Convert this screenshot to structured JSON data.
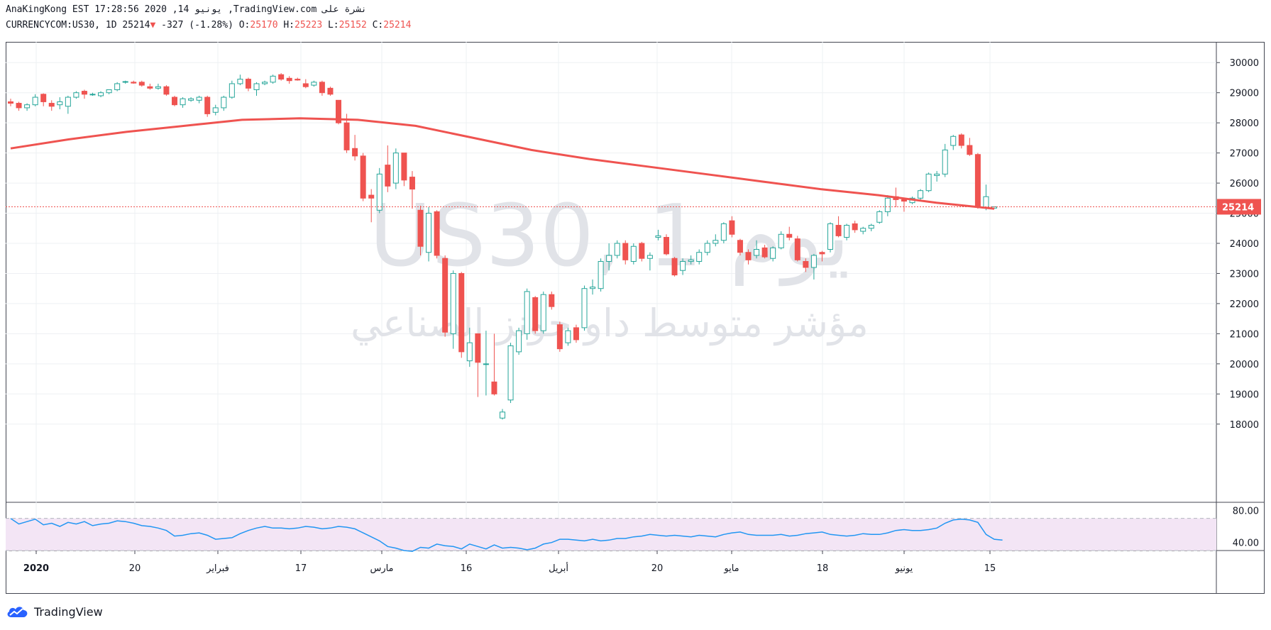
{
  "header": {
    "line1": "AnaKingKong EST 17:28:56 2020 ,14 يونيو ,TradingView.com نشرة على",
    "symbol": "CURRENCYCOM:US30, 1D 25214",
    "change": "-327 (-1.28%)",
    "o_label": "O:",
    "o_value": "25170",
    "h_label": "H:",
    "h_value": "25223",
    "l_label": "L:",
    "l_value": "25152",
    "c_label": "C:",
    "c_value": "25214"
  },
  "watermark": {
    "line1": "US30, 1 يوم",
    "line2": "مؤشر متوسط داو جونز الصناعي"
  },
  "logo": {
    "text": "TradingView"
  },
  "colors": {
    "up": "#26a69a",
    "down": "#ef5350",
    "ma": "#ef5350",
    "rsi": "#2196f3",
    "rsi_band": "#f3e5f5"
  },
  "chart_data": [
    {
      "type": "candlestick",
      "ylim": [
        17500,
        30500
      ],
      "yticks": [
        "18000",
        "19000",
        "20000",
        "21000",
        "22000",
        "23000",
        "24000",
        "25000",
        "26000",
        "27000",
        "28000",
        "29000",
        "30000"
      ],
      "last_price_label": "25214",
      "xticks": [
        "2020",
        "20",
        "فبراير",
        "17",
        "مارس",
        "16",
        "أبريل",
        "20",
        "مايو",
        "18",
        "يونيو",
        "15"
      ],
      "candles": [
        {
          "o": 28700,
          "h": 28800,
          "l": 28550,
          "c": 28650
        },
        {
          "o": 28650,
          "h": 28700,
          "l": 28400,
          "c": 28500
        },
        {
          "o": 28500,
          "h": 28650,
          "l": 28400,
          "c": 28600
        },
        {
          "o": 28600,
          "h": 28950,
          "l": 28550,
          "c": 28850
        },
        {
          "o": 28950,
          "h": 28980,
          "l": 28550,
          "c": 28700
        },
        {
          "o": 28650,
          "h": 28750,
          "l": 28400,
          "c": 28550
        },
        {
          "o": 28600,
          "h": 28850,
          "l": 28450,
          "c": 28700
        },
        {
          "o": 28550,
          "h": 28900,
          "l": 28300,
          "c": 28850
        },
        {
          "o": 28850,
          "h": 29050,
          "l": 28800,
          "c": 29000
        },
        {
          "o": 29050,
          "h": 29100,
          "l": 28800,
          "c": 28950
        },
        {
          "o": 28950,
          "h": 29000,
          "l": 28900,
          "c": 28950
        },
        {
          "o": 28900,
          "h": 29050,
          "l": 28850,
          "c": 29000
        },
        {
          "o": 29000,
          "h": 29100,
          "l": 28950,
          "c": 29100
        },
        {
          "o": 29100,
          "h": 29350,
          "l": 29050,
          "c": 29300
        },
        {
          "o": 29350,
          "h": 29400,
          "l": 29300,
          "c": 29370
        },
        {
          "o": 29350,
          "h": 29400,
          "l": 29300,
          "c": 29320
        },
        {
          "o": 29350,
          "h": 29400,
          "l": 29200,
          "c": 29250
        },
        {
          "o": 29200,
          "h": 29300,
          "l": 29100,
          "c": 29150
        },
        {
          "o": 29150,
          "h": 29300,
          "l": 29100,
          "c": 29200
        },
        {
          "o": 29200,
          "h": 29250,
          "l": 28900,
          "c": 28950
        },
        {
          "o": 28850,
          "h": 28900,
          "l": 28550,
          "c": 28600
        },
        {
          "o": 28600,
          "h": 28850,
          "l": 28500,
          "c": 28800
        },
        {
          "o": 28750,
          "h": 28850,
          "l": 28700,
          "c": 28800
        },
        {
          "o": 28750,
          "h": 28900,
          "l": 28650,
          "c": 28850
        },
        {
          "o": 28850,
          "h": 28900,
          "l": 28200,
          "c": 28300
        },
        {
          "o": 28350,
          "h": 28600,
          "l": 28250,
          "c": 28500
        },
        {
          "o": 28500,
          "h": 28900,
          "l": 28400,
          "c": 28850
        },
        {
          "o": 28850,
          "h": 29400,
          "l": 28800,
          "c": 29300
        },
        {
          "o": 29300,
          "h": 29600,
          "l": 29250,
          "c": 29450
        },
        {
          "o": 29450,
          "h": 29500,
          "l": 29050,
          "c": 29150
        },
        {
          "o": 29100,
          "h": 29350,
          "l": 28900,
          "c": 29300
        },
        {
          "o": 29300,
          "h": 29400,
          "l": 29250,
          "c": 29350
        },
        {
          "o": 29350,
          "h": 29600,
          "l": 29300,
          "c": 29550
        },
        {
          "o": 29600,
          "h": 29650,
          "l": 29400,
          "c": 29450
        },
        {
          "o": 29480,
          "h": 29550,
          "l": 29300,
          "c": 29400
        },
        {
          "o": 29450,
          "h": 29500,
          "l": 29400,
          "c": 29420
        },
        {
          "o": 29300,
          "h": 29450,
          "l": 29150,
          "c": 29200
        },
        {
          "o": 29250,
          "h": 29400,
          "l": 29200,
          "c": 29350
        },
        {
          "o": 29350,
          "h": 29400,
          "l": 28900,
          "c": 29000
        },
        {
          "o": 29150,
          "h": 29200,
          "l": 28900,
          "c": 28950
        },
        {
          "o": 28750,
          "h": 28750,
          "l": 27950,
          "c": 28000
        },
        {
          "o": 28000,
          "h": 28300,
          "l": 27000,
          "c": 27100
        },
        {
          "o": 27150,
          "h": 27600,
          "l": 26750,
          "c": 26900
        },
        {
          "o": 26900,
          "h": 27000,
          "l": 25400,
          "c": 25500
        },
        {
          "o": 25600,
          "h": 25800,
          "l": 24700,
          "c": 25500
        },
        {
          "o": 25100,
          "h": 26500,
          "l": 25000,
          "c": 26300
        },
        {
          "o": 26600,
          "h": 27250,
          "l": 25700,
          "c": 25900
        },
        {
          "o": 26000,
          "h": 27150,
          "l": 25800,
          "c": 27000
        },
        {
          "o": 27000,
          "h": 27000,
          "l": 25900,
          "c": 26100
        },
        {
          "o": 26200,
          "h": 26400,
          "l": 25150,
          "c": 25800
        },
        {
          "o": 25100,
          "h": 25250,
          "l": 23600,
          "c": 23900
        },
        {
          "o": 23700,
          "h": 25200,
          "l": 23400,
          "c": 25000
        },
        {
          "o": 25050,
          "h": 25100,
          "l": 23500,
          "c": 23600
        },
        {
          "o": 23500,
          "h": 23600,
          "l": 20900,
          "c": 21050
        },
        {
          "o": 21000,
          "h": 23100,
          "l": 20500,
          "c": 23000
        },
        {
          "o": 23000,
          "h": 23050,
          "l": 20200,
          "c": 20400
        },
        {
          "o": 20100,
          "h": 21200,
          "l": 19900,
          "c": 20700
        },
        {
          "o": 21000,
          "h": 21000,
          "l": 18900,
          "c": 20050
        },
        {
          "o": 20000,
          "h": 21100,
          "l": 18950,
          "c": 20000
        },
        {
          "o": 19400,
          "h": 21000,
          "l": 18950,
          "c": 19000
        },
        {
          "o": 18200,
          "h": 18500,
          "l": 18150,
          "c": 18400
        },
        {
          "o": 18800,
          "h": 20700,
          "l": 18700,
          "c": 20600
        },
        {
          "o": 20400,
          "h": 21200,
          "l": 20300,
          "c": 21100
        },
        {
          "o": 21000,
          "h": 22500,
          "l": 20800,
          "c": 22400
        },
        {
          "o": 22200,
          "h": 22250,
          "l": 21000,
          "c": 21100
        },
        {
          "o": 21100,
          "h": 22400,
          "l": 21000,
          "c": 22300
        },
        {
          "o": 22300,
          "h": 22400,
          "l": 21800,
          "c": 21900
        },
        {
          "o": 21300,
          "h": 21400,
          "l": 20400,
          "c": 20500
        },
        {
          "o": 20700,
          "h": 21200,
          "l": 20600,
          "c": 21100
        },
        {
          "o": 21200,
          "h": 21300,
          "l": 20700,
          "c": 20800
        },
        {
          "o": 21200,
          "h": 22600,
          "l": 21100,
          "c": 22500
        },
        {
          "o": 22500,
          "h": 22800,
          "l": 22300,
          "c": 22550
        },
        {
          "o": 22500,
          "h": 23500,
          "l": 22400,
          "c": 23400
        },
        {
          "o": 23400,
          "h": 24000,
          "l": 23100,
          "c": 23600
        },
        {
          "o": 23600,
          "h": 24100,
          "l": 23500,
          "c": 24000
        },
        {
          "o": 24000,
          "h": 24100,
          "l": 23300,
          "c": 23450
        },
        {
          "o": 23400,
          "h": 24000,
          "l": 23300,
          "c": 23900
        },
        {
          "o": 24000,
          "h": 24050,
          "l": 23400,
          "c": 23500
        },
        {
          "o": 23500,
          "h": 23700,
          "l": 23100,
          "c": 23600
        },
        {
          "o": 24200,
          "h": 24450,
          "l": 24100,
          "c": 24250
        },
        {
          "o": 24200,
          "h": 24300,
          "l": 23600,
          "c": 23650
        },
        {
          "o": 23500,
          "h": 23550,
          "l": 22900,
          "c": 22950
        },
        {
          "o": 23100,
          "h": 23500,
          "l": 22950,
          "c": 23400
        },
        {
          "o": 23400,
          "h": 23600,
          "l": 23300,
          "c": 23450
        },
        {
          "o": 23400,
          "h": 23800,
          "l": 23300,
          "c": 23700
        },
        {
          "o": 23700,
          "h": 24100,
          "l": 23600,
          "c": 24000
        },
        {
          "o": 24000,
          "h": 24300,
          "l": 23900,
          "c": 24100
        },
        {
          "o": 24100,
          "h": 24700,
          "l": 24000,
          "c": 24650
        },
        {
          "o": 24750,
          "h": 24900,
          "l": 24200,
          "c": 24300
        },
        {
          "o": 24100,
          "h": 24150,
          "l": 23600,
          "c": 23700
        },
        {
          "o": 23700,
          "h": 23800,
          "l": 23300,
          "c": 23450
        },
        {
          "o": 23600,
          "h": 24100,
          "l": 23500,
          "c": 23800
        },
        {
          "o": 23850,
          "h": 23950,
          "l": 23500,
          "c": 23550
        },
        {
          "o": 23500,
          "h": 23900,
          "l": 23400,
          "c": 23850
        },
        {
          "o": 23850,
          "h": 24400,
          "l": 23800,
          "c": 24300
        },
        {
          "o": 24300,
          "h": 24550,
          "l": 24100,
          "c": 24200
        },
        {
          "o": 24150,
          "h": 24250,
          "l": 23400,
          "c": 23450
        },
        {
          "o": 23400,
          "h": 23500,
          "l": 23050,
          "c": 23200
        },
        {
          "o": 23200,
          "h": 23650,
          "l": 22800,
          "c": 23600
        },
        {
          "o": 23700,
          "h": 23750,
          "l": 23400,
          "c": 23650
        },
        {
          "o": 23800,
          "h": 24700,
          "l": 23700,
          "c": 24650
        },
        {
          "o": 24600,
          "h": 24900,
          "l": 24200,
          "c": 24250
        },
        {
          "o": 24200,
          "h": 24650,
          "l": 24100,
          "c": 24600
        },
        {
          "o": 24650,
          "h": 24750,
          "l": 24350,
          "c": 24450
        },
        {
          "o": 24400,
          "h": 24550,
          "l": 24300,
          "c": 24500
        },
        {
          "o": 24500,
          "h": 24650,
          "l": 24400,
          "c": 24600
        },
        {
          "o": 24700,
          "h": 25100,
          "l": 24650,
          "c": 25050
        },
        {
          "o": 25050,
          "h": 25600,
          "l": 24900,
          "c": 25500
        },
        {
          "o": 25550,
          "h": 25850,
          "l": 25200,
          "c": 25450
        },
        {
          "o": 25450,
          "h": 25500,
          "l": 25050,
          "c": 25400
        },
        {
          "o": 25350,
          "h": 25550,
          "l": 25300,
          "c": 25500
        },
        {
          "o": 25500,
          "h": 25800,
          "l": 25400,
          "c": 25750
        },
        {
          "o": 25750,
          "h": 26350,
          "l": 25700,
          "c": 26300
        },
        {
          "o": 26250,
          "h": 26400,
          "l": 26050,
          "c": 26300
        },
        {
          "o": 26300,
          "h": 27300,
          "l": 26200,
          "c": 27100
        },
        {
          "o": 27250,
          "h": 27600,
          "l": 27100,
          "c": 27550
        },
        {
          "o": 27600,
          "h": 27650,
          "l": 27150,
          "c": 27250
        },
        {
          "o": 27250,
          "h": 27500,
          "l": 26900,
          "c": 26950
        },
        {
          "o": 26950,
          "h": 27000,
          "l": 25150,
          "c": 25200
        },
        {
          "o": 25200,
          "h": 25950,
          "l": 25100,
          "c": 25550
        },
        {
          "o": 25170,
          "h": 25223,
          "l": 25152,
          "c": 25214
        }
      ],
      "ma_series": {
        "values": [
          27150,
          27450,
          27700,
          27900,
          28100,
          28150,
          28100,
          27900,
          27500,
          27100,
          26800,
          26550,
          26300,
          26050,
          25800,
          25600,
          25350,
          25150
        ]
      }
    },
    {
      "type": "line",
      "ylim": [
        30,
        90
      ],
      "yticks": [
        "40.00",
        "80.00"
      ],
      "band": [
        30,
        70
      ],
      "values": [
        70,
        63,
        66,
        69,
        62,
        64,
        60,
        65,
        63,
        66,
        61,
        63,
        64,
        67,
        66,
        64,
        61,
        60,
        58,
        55,
        48,
        49,
        51,
        52,
        49,
        44,
        45,
        46,
        51,
        55,
        58,
        60,
        58,
        58,
        57,
        58,
        60,
        59,
        57,
        58,
        60,
        59,
        57,
        52,
        47,
        42,
        35,
        33,
        30,
        29,
        34,
        33,
        38,
        36,
        35,
        32,
        38,
        35,
        32,
        37,
        33,
        34,
        33,
        31,
        33,
        38,
        40,
        44,
        44,
        43,
        42,
        44,
        42,
        43,
        45,
        45,
        47,
        48,
        50,
        49,
        48,
        49,
        48,
        47,
        49,
        48,
        47,
        50,
        52,
        53,
        50,
        49,
        49,
        49,
        50,
        48,
        49,
        51,
        52,
        53,
        50,
        49,
        48,
        49,
        51,
        50,
        50,
        52,
        55,
        56,
        55,
        55,
        56,
        58,
        64,
        68,
        69,
        68,
        65,
        50,
        44,
        43
      ]
    }
  ]
}
